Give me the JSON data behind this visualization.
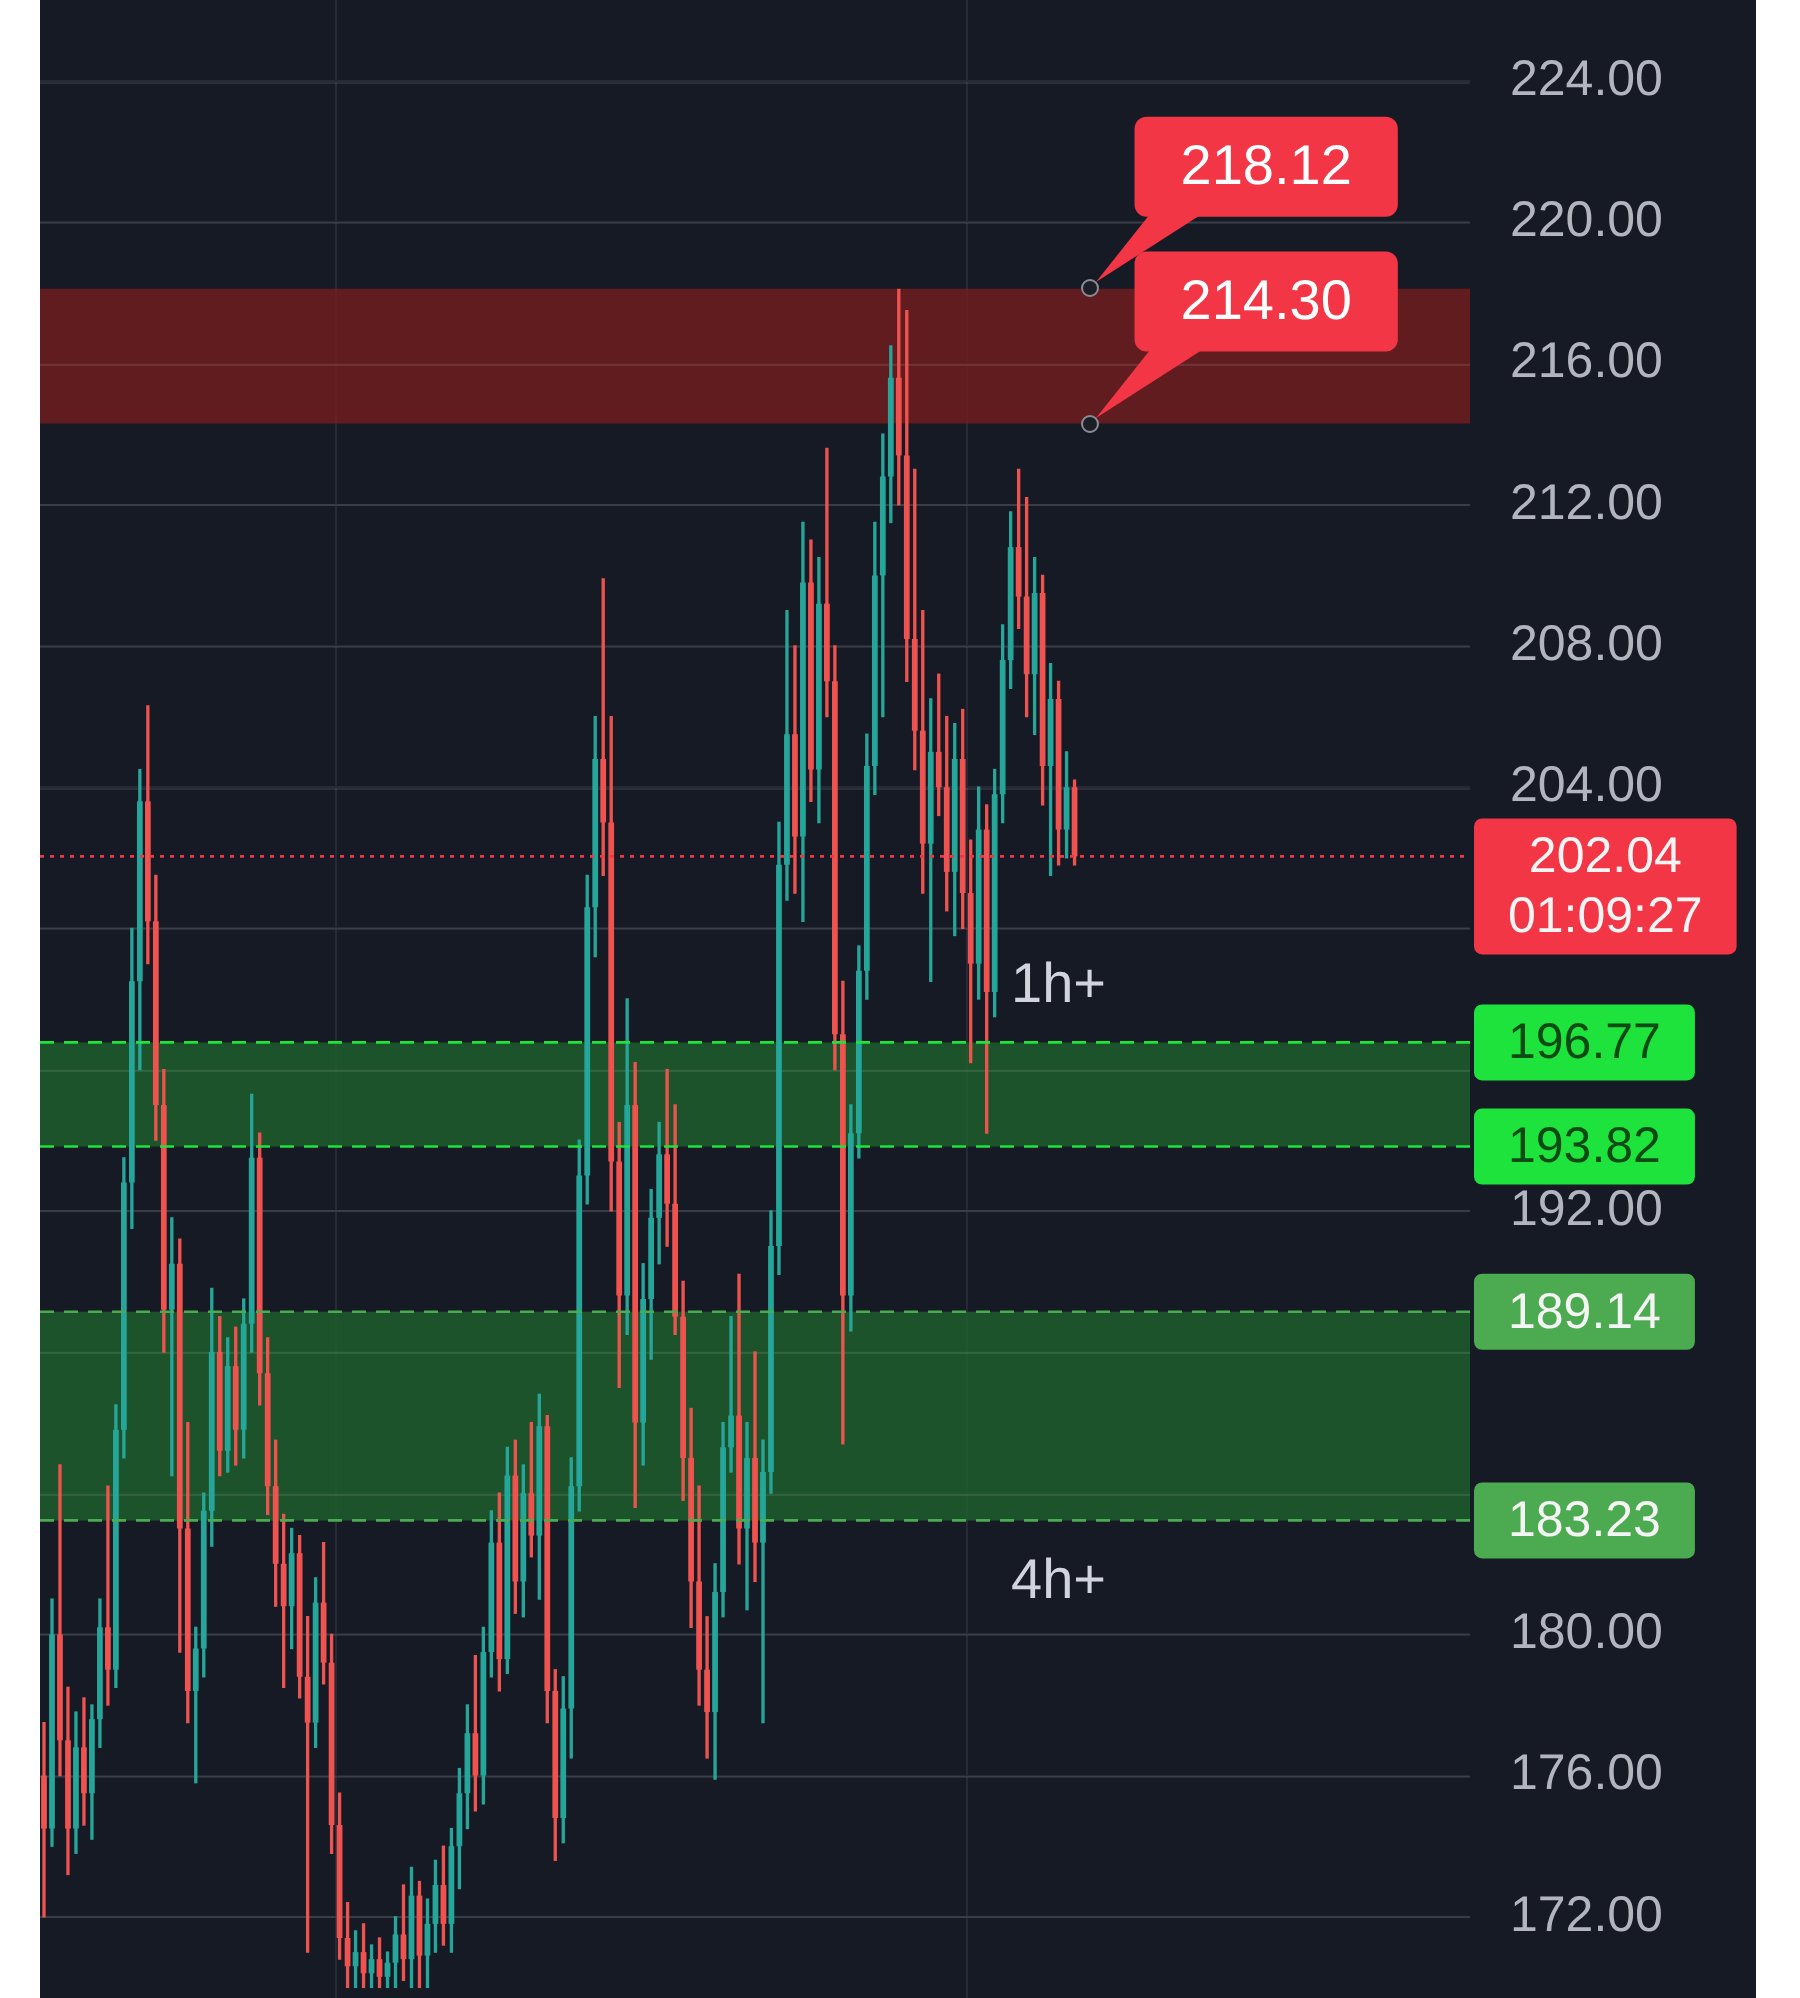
{
  "chart_data": {
    "type": "candlestick",
    "categories": [
      null,
      null,
      null,
      null,
      null,
      null,
      null,
      null,
      null,
      null,
      null,
      null,
      null,
      null,
      null,
      null,
      null,
      null,
      null,
      null,
      null,
      null,
      null,
      null,
      null,
      null,
      null,
      null,
      null,
      null,
      null,
      null,
      null,
      null,
      null,
      null,
      null,
      null,
      null,
      null,
      null,
      null,
      null,
      null,
      null,
      null,
      null,
      null,
      null,
      null,
      null,
      null,
      null,
      null,
      null,
      null,
      null,
      null,
      null,
      null,
      null,
      null,
      null,
      null,
      null,
      null,
      null,
      null,
      null,
      null,
      null,
      null,
      null,
      null,
      null,
      null,
      null,
      null,
      null,
      null,
      null,
      null,
      null,
      null,
      null,
      null,
      null,
      null,
      null,
      null,
      null,
      null,
      null,
      null,
      null,
      null,
      null,
      null,
      null,
      null,
      null,
      null,
      null,
      null,
      null,
      null,
      null,
      null,
      null,
      null,
      null,
      null,
      null,
      null,
      null,
      null,
      null,
      null,
      null,
      null,
      null,
      null,
      null,
      null,
      null,
      null,
      null,
      null,
      null,
      null,
      null,
      null,
      null,
      null,
      null,
      null,
      null,
      null,
      null,
      null,
      null,
      null,
      null,
      null,
      null,
      null,
      null,
      null,
      null,
      null,
      null,
      null,
      null,
      null,
      null,
      null,
      null,
      null,
      null,
      null,
      null,
      null,
      null,
      null,
      null,
      null,
      null,
      null,
      null,
      null,
      null,
      null,
      null,
      null,
      null,
      null,
      null,
      null,
      null
    ],
    "ohlc": [
      [
        176.0,
        177.5,
        172.0,
        174.5
      ],
      [
        174.5,
        181.0,
        174.0,
        180.0
      ],
      [
        180.0,
        184.8,
        176.0,
        177.0
      ],
      [
        177.0,
        178.5,
        173.2,
        174.5
      ],
      [
        174.5,
        177.8,
        173.8,
        176.8
      ],
      [
        176.8,
        178.2,
        174.6,
        175.5
      ],
      [
        175.5,
        178.0,
        174.2,
        177.6
      ],
      [
        177.6,
        181.0,
        176.8,
        180.2
      ],
      [
        180.2,
        184.2,
        178.0,
        179.0
      ],
      [
        179.0,
        186.5,
        178.5,
        185.8
      ],
      [
        185.8,
        193.5,
        185.0,
        192.8
      ],
      [
        192.8,
        200.0,
        191.5,
        198.5
      ],
      [
        198.5,
        204.5,
        196.0,
        203.6
      ],
      [
        203.6,
        206.3,
        199.0,
        200.2
      ],
      [
        200.2,
        201.5,
        194.0,
        195.0
      ],
      [
        195.0,
        196.0,
        188.0,
        189.2
      ],
      [
        189.2,
        191.8,
        184.5,
        190.5
      ],
      [
        190.5,
        191.2,
        179.5,
        183.0
      ],
      [
        183.0,
        186.0,
        177.5,
        178.4
      ],
      [
        178.4,
        180.2,
        175.8,
        179.6
      ],
      [
        179.6,
        184.0,
        178.8,
        183.5
      ],
      [
        183.5,
        189.8,
        182.5,
        188.0
      ],
      [
        188.0,
        189.0,
        184.5,
        185.2
      ],
      [
        185.2,
        188.4,
        184.6,
        187.6
      ],
      [
        187.6,
        188.7,
        184.8,
        185.8
      ],
      [
        185.8,
        189.5,
        185.0,
        188.8
      ],
      [
        188.8,
        195.3,
        188.0,
        193.5
      ],
      [
        193.5,
        194.2,
        186.5,
        187.4
      ],
      [
        187.4,
        188.4,
        183.4,
        184.2
      ],
      [
        184.2,
        185.5,
        180.8,
        182.0
      ],
      [
        182.0,
        183.4,
        178.5,
        180.8
      ],
      [
        180.8,
        183.0,
        179.6,
        182.3
      ],
      [
        182.3,
        182.8,
        178.2,
        178.8
      ],
      [
        178.8,
        180.5,
        171.0,
        177.5
      ],
      [
        177.5,
        181.6,
        176.8,
        180.9
      ],
      [
        180.9,
        182.6,
        178.6,
        179.2
      ],
      [
        179.2,
        180.0,
        173.8,
        174.6
      ],
      [
        174.6,
        175.5,
        170.8,
        171.4
      ],
      [
        171.4,
        172.4,
        170.0,
        170.6
      ],
      [
        170.6,
        171.6,
        170.0,
        171.0
      ],
      [
        171.0,
        171.8,
        170.0,
        170.4
      ],
      [
        170.4,
        171.2,
        170.0,
        170.8
      ],
      [
        170.8,
        171.4,
        170.0,
        170.3
      ],
      [
        170.3,
        171.0,
        170.0,
        170.7
      ],
      [
        170.7,
        172.0,
        170.0,
        171.5
      ],
      [
        171.5,
        172.9,
        170.2,
        170.8
      ],
      [
        170.8,
        173.4,
        170.0,
        172.6
      ],
      [
        172.6,
        173.0,
        170.0,
        170.9
      ],
      [
        170.9,
        172.5,
        170.0,
        171.8
      ],
      [
        171.8,
        173.6,
        171.0,
        172.9
      ],
      [
        172.9,
        174.0,
        171.2,
        171.8
      ],
      [
        171.8,
        174.5,
        171.0,
        174.0
      ],
      [
        174.0,
        176.2,
        172.8,
        175.5
      ],
      [
        175.5,
        178.0,
        174.5,
        177.2
      ],
      [
        177.2,
        179.4,
        175.0,
        176.0
      ],
      [
        176.0,
        180.2,
        175.2,
        179.5
      ],
      [
        179.5,
        183.5,
        178.8,
        182.6
      ],
      [
        182.6,
        184.0,
        178.4,
        179.3
      ],
      [
        179.3,
        185.3,
        178.9,
        184.5
      ],
      [
        184.5,
        185.5,
        180.6,
        181.5
      ],
      [
        181.5,
        184.8,
        180.5,
        184.0
      ],
      [
        184.0,
        186.0,
        182.2,
        182.8
      ],
      [
        182.8,
        186.8,
        181.0,
        185.9
      ],
      [
        185.9,
        186.2,
        177.5,
        178.4
      ],
      [
        178.4,
        179.0,
        173.6,
        174.8
      ],
      [
        174.8,
        178.8,
        174.1,
        177.9
      ],
      [
        177.9,
        185.0,
        176.5,
        184.2
      ],
      [
        184.2,
        194.0,
        183.5,
        193.0
      ],
      [
        193.0,
        201.5,
        192.2,
        200.6
      ],
      [
        200.6,
        206.0,
        199.2,
        204.8
      ],
      [
        204.8,
        209.9,
        201.5,
        203.0
      ],
      [
        203.0,
        206.0,
        192.0,
        193.4
      ],
      [
        193.4,
        194.5,
        187.0,
        189.6
      ],
      [
        189.6,
        198.0,
        188.5,
        195.0
      ],
      [
        195.0,
        196.2,
        183.6,
        186.0
      ],
      [
        186.0,
        190.5,
        184.8,
        189.5
      ],
      [
        189.5,
        192.6,
        187.8,
        191.8
      ],
      [
        191.8,
        194.5,
        190.5,
        193.6
      ],
      [
        193.6,
        196.0,
        191.0,
        192.2
      ],
      [
        192.2,
        195.0,
        188.5,
        189.0
      ],
      [
        189.0,
        190.0,
        183.8,
        185.0
      ],
      [
        185.0,
        186.4,
        180.2,
        181.5
      ],
      [
        181.5,
        184.2,
        178.0,
        179.0
      ],
      [
        179.0,
        180.5,
        176.5,
        177.8
      ],
      [
        177.8,
        182.0,
        175.9,
        181.2
      ],
      [
        181.2,
        186.0,
        180.5,
        185.3
      ],
      [
        185.3,
        189.0,
        184.6,
        186.2
      ],
      [
        186.2,
        190.2,
        182.0,
        183.0
      ],
      [
        183.0,
        186.0,
        180.7,
        185.0
      ],
      [
        185.0,
        188.0,
        181.5,
        182.6
      ],
      [
        182.6,
        185.5,
        177.5,
        184.6
      ],
      [
        184.6,
        192.0,
        184.0,
        191.0
      ],
      [
        191.0,
        203.0,
        190.2,
        201.8
      ],
      [
        201.8,
        209.0,
        200.8,
        205.5
      ],
      [
        205.5,
        208.0,
        201.0,
        202.6
      ],
      [
        202.6,
        211.5,
        200.2,
        209.8
      ],
      [
        209.8,
        211.0,
        203.6,
        204.5
      ],
      [
        204.5,
        210.5,
        203.0,
        209.2
      ],
      [
        209.2,
        213.6,
        206.0,
        207.0
      ],
      [
        207.0,
        208.0,
        196.0,
        197.0
      ],
      [
        197.0,
        198.5,
        185.4,
        189.6
      ],
      [
        189.6,
        195.0,
        188.6,
        194.2
      ],
      [
        194.2,
        199.5,
        193.5,
        198.8
      ],
      [
        198.8,
        205.5,
        198.0,
        204.6
      ],
      [
        204.6,
        211.5,
        203.8,
        210.0
      ],
      [
        210.0,
        214.0,
        206.0,
        212.8
      ],
      [
        212.8,
        216.5,
        211.5,
        215.6
      ],
      [
        215.6,
        218.1,
        212.0,
        213.4
      ],
      [
        213.4,
        217.5,
        207.0,
        208.2
      ],
      [
        208.2,
        213.0,
        204.5,
        205.6
      ],
      [
        205.6,
        209.0,
        201.0,
        202.4
      ],
      [
        202.4,
        206.5,
        198.5,
        205.0
      ],
      [
        205.0,
        207.2,
        203.2,
        204.0
      ],
      [
        204.0,
        206.0,
        200.5,
        201.6
      ],
      [
        201.6,
        205.8,
        199.8,
        204.8
      ],
      [
        204.8,
        206.2,
        200.0,
        201.0
      ],
      [
        201.0,
        202.5,
        196.2,
        199.0
      ],
      [
        199.0,
        204.0,
        198.0,
        202.8
      ],
      [
        202.8,
        203.5,
        194.2,
        198.2
      ],
      [
        198.2,
        204.5,
        197.5,
        203.8
      ],
      [
        203.8,
        208.6,
        203.0,
        207.6
      ],
      [
        207.6,
        211.8,
        206.8,
        210.8
      ],
      [
        210.8,
        213.0,
        208.5,
        209.4
      ],
      [
        209.4,
        212.2,
        206.0,
        207.2
      ],
      [
        207.2,
        210.5,
        205.5,
        209.5
      ],
      [
        209.5,
        210.0,
        203.5,
        204.6
      ],
      [
        204.6,
        207.5,
        201.5,
        206.5
      ],
      [
        206.5,
        207.0,
        201.8,
        202.8
      ],
      [
        202.8,
        205.0,
        202.0,
        204.0
      ],
      [
        204.0,
        204.2,
        201.8,
        202.04
      ],
      null,
      null,
      null,
      null,
      null,
      null,
      null,
      null,
      null,
      null,
      null,
      null,
      null,
      null,
      null,
      null,
      null,
      null,
      null,
      null,
      null,
      null,
      null,
      null,
      null,
      null,
      null,
      null,
      null,
      null,
      null,
      null,
      null,
      null,
      null,
      null,
      null,
      null,
      null,
      null,
      null,
      null,
      null,
      null,
      null,
      null,
      null,
      null,
      null
    ],
    "colors": [
      "#ef5350",
      "#26a69a",
      "#ef5350",
      "#ef5350",
      "#26a69a",
      "#ef5350",
      "#26a69a",
      "#26a69a",
      "#ef5350",
      "#26a69a",
      "#26a69a",
      "#26a69a",
      "#26a69a",
      "#ef5350",
      "#ef5350",
      "#ef5350",
      "#26a69a",
      "#ef5350",
      "#ef5350",
      "#26a69a",
      "#26a69a",
      "#26a69a",
      "#ef5350",
      "#26a69a",
      "#ef5350",
      "#26a69a",
      "#26a69a",
      "#ef5350",
      "#ef5350",
      "#ef5350",
      "#ef5350",
      "#26a69a",
      "#ef5350",
      "#ef5350",
      "#26a69a",
      "#ef5350",
      "#ef5350",
      "#ef5350",
      "#ef5350",
      "#26a69a",
      "#ef5350",
      "#26a69a",
      "#ef5350",
      "#26a69a",
      "#26a69a",
      "#ef5350",
      "#26a69a",
      "#ef5350",
      "#26a69a",
      "#26a69a",
      "#ef5350",
      "#26a69a",
      "#26a69a",
      "#26a69a",
      "#ef5350",
      "#26a69a",
      "#26a69a",
      "#ef5350",
      "#26a69a",
      "#ef5350",
      "#26a69a",
      "#ef5350",
      "#26a69a",
      "#ef5350",
      "#ef5350",
      "#26a69a",
      "#26a69a",
      "#26a69a",
      "#26a69a",
      "#26a69a",
      "#ef5350",
      "#ef5350",
      "#ef5350",
      "#26a69a",
      "#ef5350",
      "#26a69a",
      "#26a69a",
      "#26a69a",
      "#ef5350",
      "#ef5350",
      "#ef5350",
      "#ef5350",
      "#ef5350",
      "#ef5350",
      "#26a69a",
      "#26a69a",
      "#26a69a",
      "#ef5350",
      "#26a69a",
      "#ef5350",
      "#26a69a",
      "#26a69a",
      "#26a69a",
      "#26a69a",
      "#ef5350",
      "#26a69a",
      "#ef5350",
      "#26a69a",
      "#ef5350",
      "#ef5350",
      "#ef5350",
      "#26a69a",
      "#26a69a",
      "#26a69a",
      "#26a69a",
      "#26a69a",
      "#26a69a",
      "#ef5350",
      "#ef5350",
      "#ef5350",
      "#ef5350",
      "#26a69a",
      "#ef5350",
      "#ef5350",
      "#26a69a",
      "#ef5350",
      "#ef5350",
      "#26a69a",
      "#ef5350",
      "#26a69a",
      "#26a69a",
      "#26a69a",
      "#ef5350",
      "#ef5350",
      "#26a69a",
      "#ef5350",
      "#26a69a",
      "#ef5350",
      "#26a69a",
      "#ef5350",
      null,
      null,
      null,
      null,
      null,
      null,
      null,
      null,
      null,
      null,
      null,
      null,
      null,
      null,
      null,
      null,
      null,
      null,
      null,
      null,
      null,
      null,
      null,
      null,
      null,
      null,
      null,
      null,
      null,
      null,
      null,
      null,
      null,
      null,
      null,
      null,
      null,
      null,
      null,
      null,
      null,
      null,
      null,
      null,
      null,
      null,
      null,
      null,
      null
    ],
    "ylim": [
      169.7,
      226.3
    ],
    "yticks": [
      {
        "value": 172,
        "label": "172.00"
      },
      {
        "value": 176,
        "label": "176.00"
      },
      {
        "value": 180,
        "label": "180.00"
      },
      {
        "value": 184,
        "label": null
      },
      {
        "value": 188,
        "label": null
      },
      {
        "value": 192,
        "label": "192.00"
      },
      {
        "value": 196,
        "label": null
      },
      {
        "value": 200,
        "label": null
      },
      {
        "value": 204,
        "label": "204.00"
      },
      {
        "value": 208,
        "label": "208.00"
      },
      {
        "value": 212,
        "label": "212.00"
      },
      {
        "value": 216,
        "label": "216.00"
      },
      {
        "value": 220,
        "label": "220.00"
      },
      {
        "value": 224,
        "label": "224.00"
      }
    ],
    "ref_lines": [
      {
        "axis": "y",
        "value": 202.04,
        "label": "202.04\n01:09:27",
        "color": "#f23645",
        "line_style": "dotted"
      },
      {
        "axis": "y",
        "value": 196.77,
        "label": "196.77",
        "color": "#1fe33d",
        "line_style": "dashed"
      },
      {
        "axis": "y",
        "value": 193.82,
        "label": "193.82",
        "color": "#1fe33d",
        "line_style": "dashed"
      },
      {
        "axis": "y",
        "value": 189.14,
        "label": "189.14",
        "color": "#4caa50",
        "line_style": "dashed"
      },
      {
        "axis": "y",
        "value": 183.23,
        "label": "183.23",
        "color": "#4caa50",
        "line_style": "dashed"
      }
    ],
    "bands": [
      {
        "axis": "y",
        "from": 214.3,
        "to": 218.12,
        "color": "#6e1d20"
      },
      {
        "axis": "y",
        "from": 193.82,
        "to": 196.77,
        "color": "#1f5e2c",
        "label": "1h+"
      },
      {
        "axis": "y",
        "from": 183.23,
        "to": 189.14,
        "color": "#1f5e2c",
        "label": "4h+"
      }
    ],
    "annotations": [
      {
        "text": "218.12",
        "y": 218.12
      },
      {
        "text": "214.30",
        "y": 214.3
      }
    ],
    "grid": true,
    "tick_labels": "y"
  }
}
